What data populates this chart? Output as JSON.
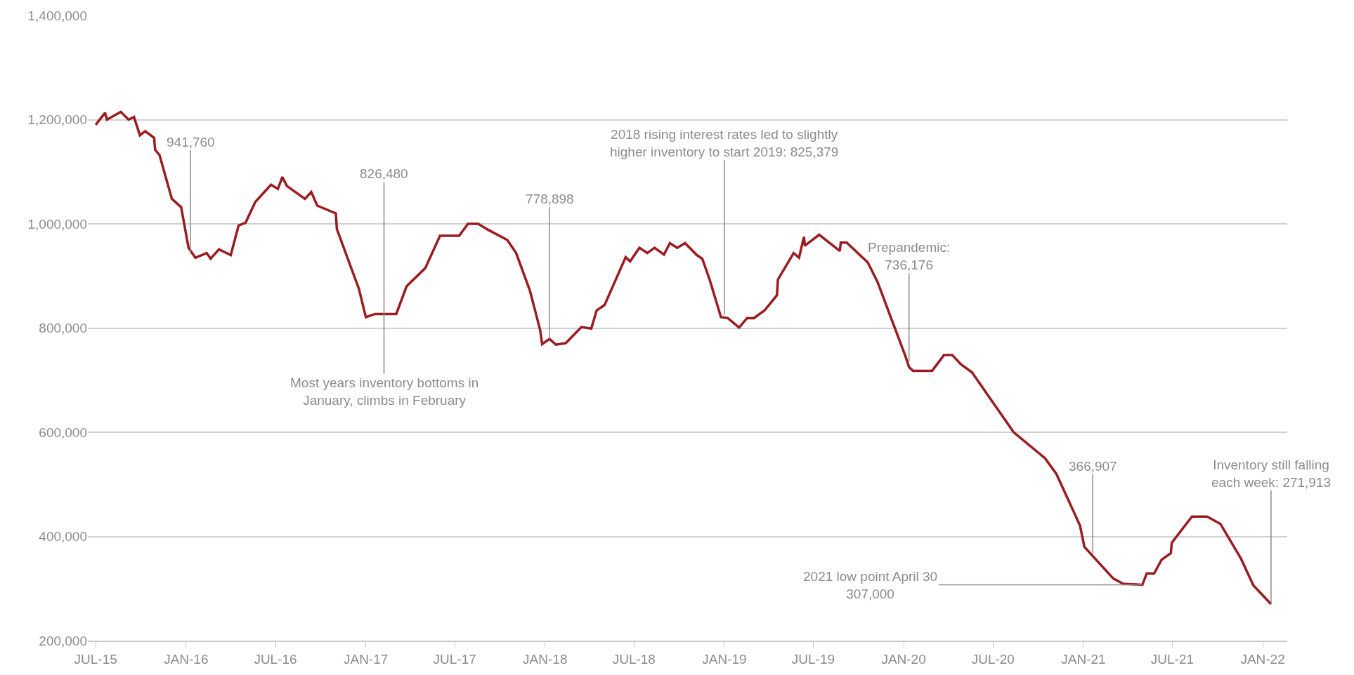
{
  "chart_data": {
    "type": "line",
    "x": [
      "2015-07-01",
      "2015-07-20",
      "2015-07-24",
      "2015-08-21",
      "2015-09-06",
      "2015-09-17",
      "2015-09-29",
      "2015-10-10",
      "2015-10-28",
      "2015-10-30",
      "2015-11-08",
      "2015-12-03",
      "2015-12-22",
      "2016-01-06",
      "2016-01-20",
      "2016-02-12",
      "2016-02-20",
      "2016-03-08",
      "2016-04-01",
      "2016-04-17",
      "2016-05-01",
      "2016-05-21",
      "2016-06-22",
      "2016-07-06",
      "2016-07-15",
      "2016-07-24",
      "2016-08-30",
      "2016-09-12",
      "2016-09-24",
      "2016-11-01",
      "2016-11-03",
      "2016-12-18",
      "2017-01-01",
      "2017-01-20",
      "2017-03-04",
      "2017-03-25",
      "2017-05-02",
      "2017-06-01",
      "2017-07-10",
      "2017-07-28",
      "2017-08-18",
      "2017-09-06",
      "2017-10-16",
      "2017-11-03",
      "2017-12-01",
      "2017-12-22",
      "2017-12-26",
      "2018-01-10",
      "2018-01-23",
      "2018-02-12",
      "2018-03-16",
      "2018-04-05",
      "2018-04-16",
      "2018-05-02",
      "2018-06-14",
      "2018-06-23",
      "2018-07-12",
      "2018-07-28",
      "2018-08-12",
      "2018-08-31",
      "2018-09-12",
      "2018-09-27",
      "2018-10-13",
      "2018-11-06",
      "2018-11-17",
      "2018-12-02",
      "2018-12-25",
      "2019-01-08",
      "2019-01-31",
      "2019-02-16",
      "2019-03-02",
      "2019-03-24",
      "2019-04-18",
      "2019-04-20",
      "2019-05-22",
      "2019-06-02",
      "2019-06-12",
      "2019-06-14",
      "2019-07-13",
      "2019-08-24",
      "2019-08-26",
      "2019-09-07",
      "2019-10-20",
      "2019-11-09",
      "2020-01-05",
      "2020-01-12",
      "2020-01-20",
      "2020-02-28",
      "2020-03-23",
      "2020-04-09",
      "2020-04-27",
      "2020-05-19",
      "2020-08-12",
      "2020-10-15",
      "2020-11-07",
      "2020-12-25",
      "2021-01-03",
      "2021-03-03",
      "2021-03-23",
      "2021-05-01",
      "2021-05-10",
      "2021-05-25",
      "2021-06-09",
      "2021-06-28",
      "2021-06-30",
      "2021-08-10",
      "2021-09-10",
      "2021-10-07",
      "2021-11-18",
      "2021-12-13",
      "2022-01-18"
    ],
    "series": [
      {
        "color": "#9b1c1f",
        "values": [
          1190000,
          1213000,
          1200000,
          1215000,
          1200000,
          1205000,
          1170000,
          1178000,
          1165000,
          1142000,
          1132000,
          1048000,
          1032000,
          954000,
          935000,
          944000,
          933000,
          951000,
          940000,
          997000,
          1002000,
          1042000,
          1075000,
          1067000,
          1090000,
          1073000,
          1048000,
          1061000,
          1035000,
          1020000,
          990000,
          875000,
          821000,
          827000,
          827000,
          880000,
          915000,
          977000,
          977000,
          1000000,
          1000000,
          989000,
          969000,
          944000,
          872000,
          796000,
          769000,
          779000,
          768000,
          771000,
          802000,
          799000,
          834000,
          844000,
          936000,
          928000,
          954000,
          944000,
          954000,
          941000,
          963000,
          954000,
          963000,
          940000,
          933000,
          893000,
          821000,
          819000,
          801000,
          819000,
          819000,
          834000,
          863000,
          893000,
          944000,
          935000,
          975000,
          958000,
          979000,
          948000,
          964000,
          964000,
          926000,
          888000,
          745000,
          725000,
          718000,
          718000,
          748000,
          748000,
          730000,
          715000,
          600000,
          550000,
          520000,
          421000,
          380000,
          319000,
          309000,
          307000,
          329000,
          329000,
          355000,
          368000,
          388000,
          438000,
          438000,
          424000,
          357000,
          306000,
          270000
        ]
      }
    ],
    "xlim": [
      "2015-06-15",
      "2022-02-20"
    ],
    "xticks": [
      {
        "value": "2015-07-01",
        "label": "JUL-15"
      },
      {
        "value": "2016-01-01",
        "label": "JAN-16"
      },
      {
        "value": "2016-07-01",
        "label": "JUL-16"
      },
      {
        "value": "2017-01-01",
        "label": "JAN-17"
      },
      {
        "value": "2017-07-01",
        "label": "JUL-17"
      },
      {
        "value": "2018-01-01",
        "label": "JAN-18"
      },
      {
        "value": "2018-07-01",
        "label": "JUL-18"
      },
      {
        "value": "2019-01-01",
        "label": "JAN-19"
      },
      {
        "value": "2019-07-01",
        "label": "JUL-19"
      },
      {
        "value": "2020-01-01",
        "label": "JAN-20"
      },
      {
        "value": "2020-07-01",
        "label": "JUL-20"
      },
      {
        "value": "2021-01-01",
        "label": "JAN-21"
      },
      {
        "value": "2021-07-01",
        "label": "JUL-21"
      },
      {
        "value": "2022-01-01",
        "label": "JAN-22"
      }
    ],
    "ylim": [
      200000,
      1400000
    ],
    "yticks": [
      {
        "value": 200000,
        "label": "200,000"
      },
      {
        "value": 400000,
        "label": "400,000"
      },
      {
        "value": 600000,
        "label": "600,000"
      },
      {
        "value": 800000,
        "label": "800,000"
      },
      {
        "value": 1000000,
        "label": "1,000,000"
      },
      {
        "value": 1200000,
        "label": "1,200,000"
      },
      {
        "value": 1400000,
        "label": "1,400,000"
      }
    ],
    "grid": "y",
    "legend": false,
    "marker": "none",
    "line_style": "solid",
    "annotations": [
      {
        "text": "941,760",
        "x": "2016-01-10",
        "y": 941760
      },
      {
        "text": "826,480",
        "x": "2017-02-07",
        "y": 826480
      },
      {
        "text": "778,898",
        "x": "2018-01-10",
        "y": 778898
      },
      {
        "text": "2018 rising interest rates led to slightly\nhigher inventory to start 2019: 825,379",
        "x": "2019-01-01",
        "y": 825379
      },
      {
        "text": "Prepandemic:\n736,176",
        "x": "2020-01-12",
        "y": 736176
      },
      {
        "text": "366,907",
        "x": "2021-01-20",
        "y": 366907
      },
      {
        "text": "Most years inventory bottoms in\nJanuary, climbs in February",
        "x": "2017-02-07",
        "y": 826480
      },
      {
        "text": "2021 low point April 30\n307,000",
        "x": "2021-05-01",
        "y": 307000
      },
      {
        "text": "Inventory still falling\neach week: 271,913",
        "x": "2022-01-18",
        "y": 271913
      }
    ]
  }
}
